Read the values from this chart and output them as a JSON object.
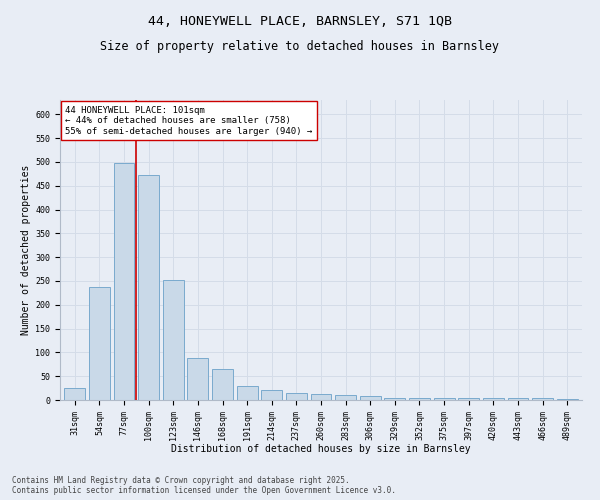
{
  "title_line1": "44, HONEYWELL PLACE, BARNSLEY, S71 1QB",
  "title_line2": "Size of property relative to detached houses in Barnsley",
  "xlabel": "Distribution of detached houses by size in Barnsley",
  "ylabel": "Number of detached properties",
  "categories": [
    "31sqm",
    "54sqm",
    "77sqm",
    "100sqm",
    "123sqm",
    "146sqm",
    "168sqm",
    "191sqm",
    "214sqm",
    "237sqm",
    "260sqm",
    "283sqm",
    "306sqm",
    "329sqm",
    "352sqm",
    "375sqm",
    "397sqm",
    "420sqm",
    "443sqm",
    "466sqm",
    "489sqm"
  ],
  "values": [
    25,
    238,
    497,
    472,
    252,
    88,
    65,
    30,
    20,
    15,
    12,
    10,
    8,
    5,
    4,
    4,
    4,
    5,
    5,
    5,
    3
  ],
  "bar_color": "#c9d9e8",
  "bar_edge_color": "#7aaace",
  "vline_color": "#cc0000",
  "annotation_text": "44 HONEYWELL PLACE: 101sqm\n← 44% of detached houses are smaller (758)\n55% of semi-detached houses are larger (940) →",
  "annotation_box_color": "#ffffff",
  "annotation_box_edge": "#cc0000",
  "ylim": [
    0,
    630
  ],
  "yticks": [
    0,
    50,
    100,
    150,
    200,
    250,
    300,
    350,
    400,
    450,
    500,
    550,
    600
  ],
  "grid_color": "#d4dce8",
  "background_color": "#e8edf5",
  "footer_text": "Contains HM Land Registry data © Crown copyright and database right 2025.\nContains public sector information licensed under the Open Government Licence v3.0.",
  "title_fontsize": 9.5,
  "subtitle_fontsize": 8.5,
  "tick_fontsize": 6,
  "label_fontsize": 7,
  "annotation_fontsize": 6.5,
  "footer_fontsize": 5.5
}
